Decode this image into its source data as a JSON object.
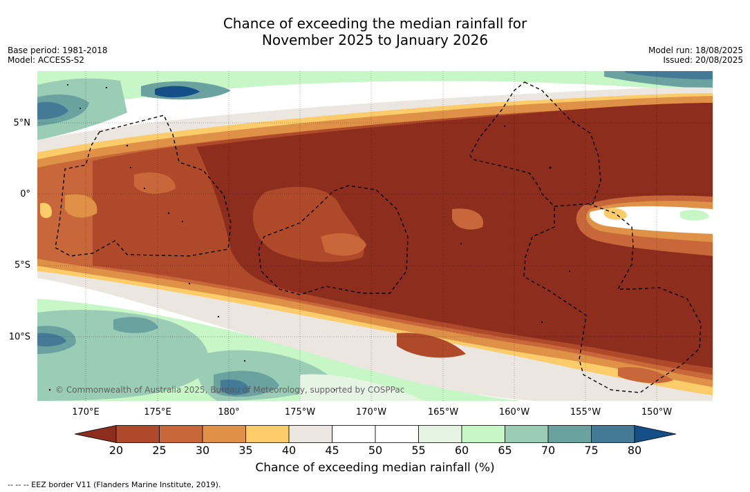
{
  "title": {
    "line1": "Chance of exceeding the median rainfall for",
    "line2": "November 2025 to January 2026"
  },
  "meta": {
    "base_period": "Base period: 1981-2018",
    "model": "Model: ACCESS-S2",
    "model_run": "Model run: 18/08/2025",
    "issued": "Issued: 20/08/2025"
  },
  "map": {
    "lat_labels": [
      "5°N",
      "0°",
      "5°S",
      "10°S"
    ],
    "lon_labels": [
      "170°E",
      "175°E",
      "180°",
      "175°W",
      "170°W",
      "165°W",
      "160°W",
      "155°W",
      "150°W"
    ],
    "copyright": "© Commonwealth of Australia 2025, Bureau of Meteorology, supported by COSPPac"
  },
  "legend": {
    "ticks": [
      "20",
      "25",
      "30",
      "35",
      "40",
      "45",
      "50",
      "55",
      "60",
      "65",
      "70",
      "75",
      "80"
    ],
    "colors": [
      "#8c2d1e",
      "#ae4a2a",
      "#c8673a",
      "#de9147",
      "#fccb6a",
      "#ebe6df",
      "#ffffff",
      "#ffffff",
      "#e6f4e4",
      "#c7f7c6",
      "#9bcdb6",
      "#6ba2a0",
      "#457a97",
      "#144f87"
    ],
    "label": "Chance of exceeding median rainfall (%)"
  },
  "footnote": "--  --  -- EEZ border V11 (Flanders Marine Institute, 2019)."
}
